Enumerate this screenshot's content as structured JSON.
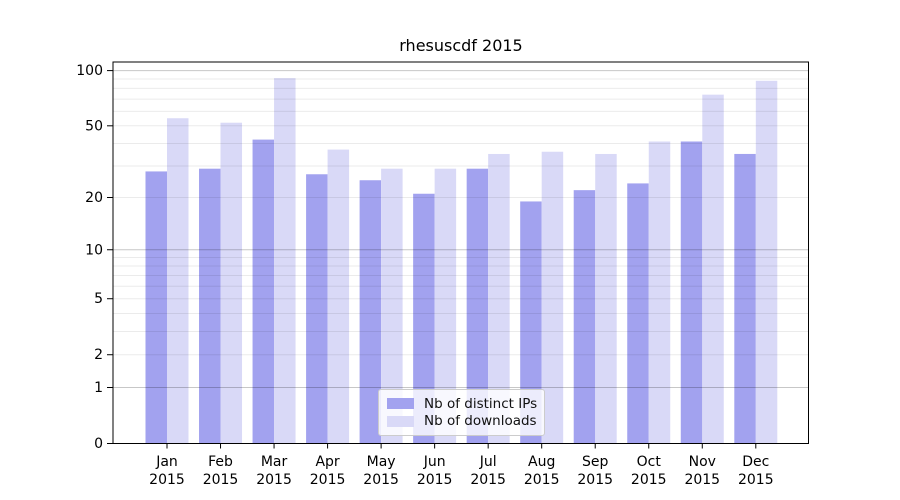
{
  "title": "rhesuscdf 2015",
  "legend": {
    "items": [
      {
        "label": "Nb of distinct IPs",
        "color": "#a2a2ef"
      },
      {
        "label": "Nb of downloads",
        "color": "#d9d9f7"
      }
    ]
  },
  "chart_data": {
    "type": "bar",
    "title": "rhesuscdf 2015",
    "categories": [
      "Jan",
      "Feb",
      "Mar",
      "Apr",
      "May",
      "Jun",
      "Jul",
      "Aug",
      "Sep",
      "Oct",
      "Nov",
      "Dec"
    ],
    "year": "2015",
    "series": [
      {
        "name": "Nb of distinct IPs",
        "color": "#a2a2ef",
        "values": [
          28,
          29,
          42,
          27,
          25,
          21,
          29,
          19,
          22,
          24,
          41,
          35
        ]
      },
      {
        "name": "Nb of downloads",
        "color": "#d9d9f7",
        "values": [
          55,
          52,
          91,
          37,
          29,
          29,
          35,
          36,
          35,
          41,
          74,
          88
        ]
      }
    ],
    "y_scale": "log1p",
    "y_ticks": [
      0,
      1,
      2,
      5,
      10,
      20,
      50,
      100
    ],
    "y_minor_gridlines": [
      3,
      4,
      6,
      7,
      8,
      9,
      30,
      40,
      60,
      70,
      80,
      90
    ],
    "ylim": [
      0,
      112
    ],
    "grid": true,
    "legend_position": "lower center"
  }
}
